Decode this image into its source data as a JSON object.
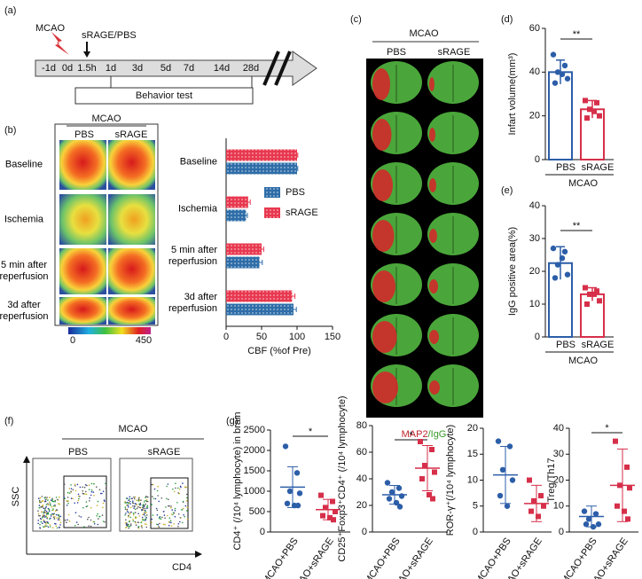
{
  "panel_labels": [
    "(a)",
    "(b)",
    "(c)",
    "(d)",
    "(e)",
    "(f)",
    "(g)"
  ],
  "timeline": {
    "model": "MCAO",
    "treatment": "sRAGE/PBS",
    "ticks": [
      "-1d",
      "0d",
      "1.5h",
      "1d",
      "3d",
      "5d",
      "7d",
      "14d",
      "28d"
    ],
    "behavior": "Behavior test"
  },
  "cbf_images": {
    "group": "MCAO",
    "columns": [
      "PBS",
      "sRAGE"
    ],
    "rows": [
      "Baseline",
      "Ischemia",
      "5 min after reperfusion",
      "3d after reperfusion"
    ],
    "colorbar": [
      0,
      450
    ]
  },
  "brain_sections": {
    "group": "MCAO",
    "columns": [
      "PBS",
      "sRAGE"
    ],
    "stain_red": "MAP2",
    "stain_green": "/IgG"
  },
  "flow": {
    "group": "MCAO",
    "columns": [
      "PBS",
      "sRAGE"
    ],
    "y_label": "SSC",
    "x_label": "CD4"
  },
  "chart_data": [
    {
      "type": "hbar",
      "categories": [
        "Baseline",
        "Ischemia",
        "5 min after reperfusion",
        "3d after reperfusion"
      ],
      "series": [
        {
          "name": "PBS",
          "color": "#2e6da8",
          "values": [
            100,
            28,
            47,
            95
          ],
          "errors": [
            1,
            2,
            4,
            4
          ]
        },
        {
          "name": "sRAGE",
          "color": "#e8384f",
          "values": [
            100,
            31,
            50,
            93
          ],
          "errors": [
            1,
            3,
            3,
            4
          ]
        }
      ],
      "xlim": [
        0,
        150
      ],
      "xticks": [
        0,
        50,
        100,
        150
      ],
      "xlabel": "CBF (%of Pre)"
    },
    {
      "type": "bar",
      "categories": [
        "PBS",
        "sRAGE"
      ],
      "group": "MCAO",
      "colors": [
        "#2c5ea8",
        "#d62f4a"
      ],
      "values": [
        40,
        23
      ],
      "errors": [
        5.5,
        4
      ],
      "points": [
        [
          48,
          43,
          40,
          37,
          35,
          39
        ],
        [
          27,
          26,
          23,
          20,
          19,
          22
        ]
      ],
      "ylim": [
        0,
        60
      ],
      "yticks": [
        0,
        20,
        40,
        60
      ],
      "ylabel": "Infart volume(mm³)",
      "significance": "**"
    },
    {
      "type": "bar",
      "categories": [
        "PBS",
        "sRAGE"
      ],
      "group": "MCAO",
      "colors": [
        "#2c5ea8",
        "#d62f4a"
      ],
      "values": [
        22.5,
        13
      ],
      "errors": [
        5,
        2
      ],
      "points": [
        [
          27,
          26,
          22,
          19,
          18,
          24
        ],
        [
          15,
          14,
          13,
          11,
          10,
          13
        ]
      ],
      "ylim": [
        0,
        40
      ],
      "yticks": [
        0,
        10,
        20,
        30,
        40
      ],
      "ylabel": "IgG positive area(%)",
      "significance": "**"
    },
    {
      "type": "dot",
      "categories": [
        "MCAO+PBS",
        "MCAO+sRAGE"
      ],
      "colors": [
        "#2c5ea8",
        "#d62f4a"
      ],
      "values": [
        1100,
        550
      ],
      "errors": [
        500,
        250
      ],
      "points": [
        [
          2100,
          1450,
          1000,
          950,
          700,
          650,
          650
        ],
        [
          900,
          750,
          600,
          500,
          400,
          350,
          300
        ]
      ],
      "ylim": [
        0,
        2500
      ],
      "yticks": [
        0,
        500,
        1000,
        1500,
        2000,
        2500
      ],
      "ylabel": "CD4⁺ (/10⁴ lymphocyte) in brain",
      "significance": "*"
    },
    {
      "type": "dot",
      "categories": [
        "MCAO+PBS",
        "MCAO+sRAGE"
      ],
      "colors": [
        "#2c5ea8",
        "#d62f4a"
      ],
      "values": [
        28,
        48
      ],
      "errors": [
        7,
        17
      ],
      "points": [
        [
          37,
          33,
          30,
          27,
          25,
          22,
          19
        ],
        [
          68,
          62,
          50,
          45,
          40,
          28,
          25
        ]
      ],
      "ylim": [
        0,
        80
      ],
      "yticks": [
        0,
        20,
        40,
        60,
        80
      ],
      "ylabel": "CD25⁺Foxp3⁺CD4⁺ (/10⁴ lymphocyte)",
      "significance": "*"
    },
    {
      "type": "dot",
      "categories": [
        "MCAO+PBS",
        "MCAO+sRAGE"
      ],
      "colors": [
        "#2c5ea8",
        "#d62f4a"
      ],
      "values": [
        11,
        5.5
      ],
      "errors": [
        5.5,
        3.5
      ],
      "points": [
        [
          17.5,
          16.5,
          12,
          10,
          7,
          5
        ],
        [
          10,
          7,
          6,
          5,
          4,
          3
        ]
      ],
      "ylim": [
        0,
        20
      ],
      "yticks": [
        0,
        5,
        10,
        15,
        20
      ],
      "ylabel": "ROR-γ⁺(/10⁴ lymphocyte)"
    },
    {
      "type": "dot",
      "categories": [
        "MCAO+PBS",
        "MCAO+sRAGE"
      ],
      "colors": [
        "#2c5ea8",
        "#d62f4a"
      ],
      "values": [
        6,
        18
      ],
      "errors": [
        4,
        14
      ],
      "points": [
        [
          8,
          7,
          5,
          3,
          3,
          2
        ],
        [
          35,
          25,
          18,
          17,
          10,
          8,
          5
        ]
      ],
      "ylim": [
        0,
        40
      ],
      "yticks": [
        0,
        10,
        20,
        30,
        40
      ],
      "ylabel": "Treg/Th17",
      "significance": "*"
    }
  ]
}
